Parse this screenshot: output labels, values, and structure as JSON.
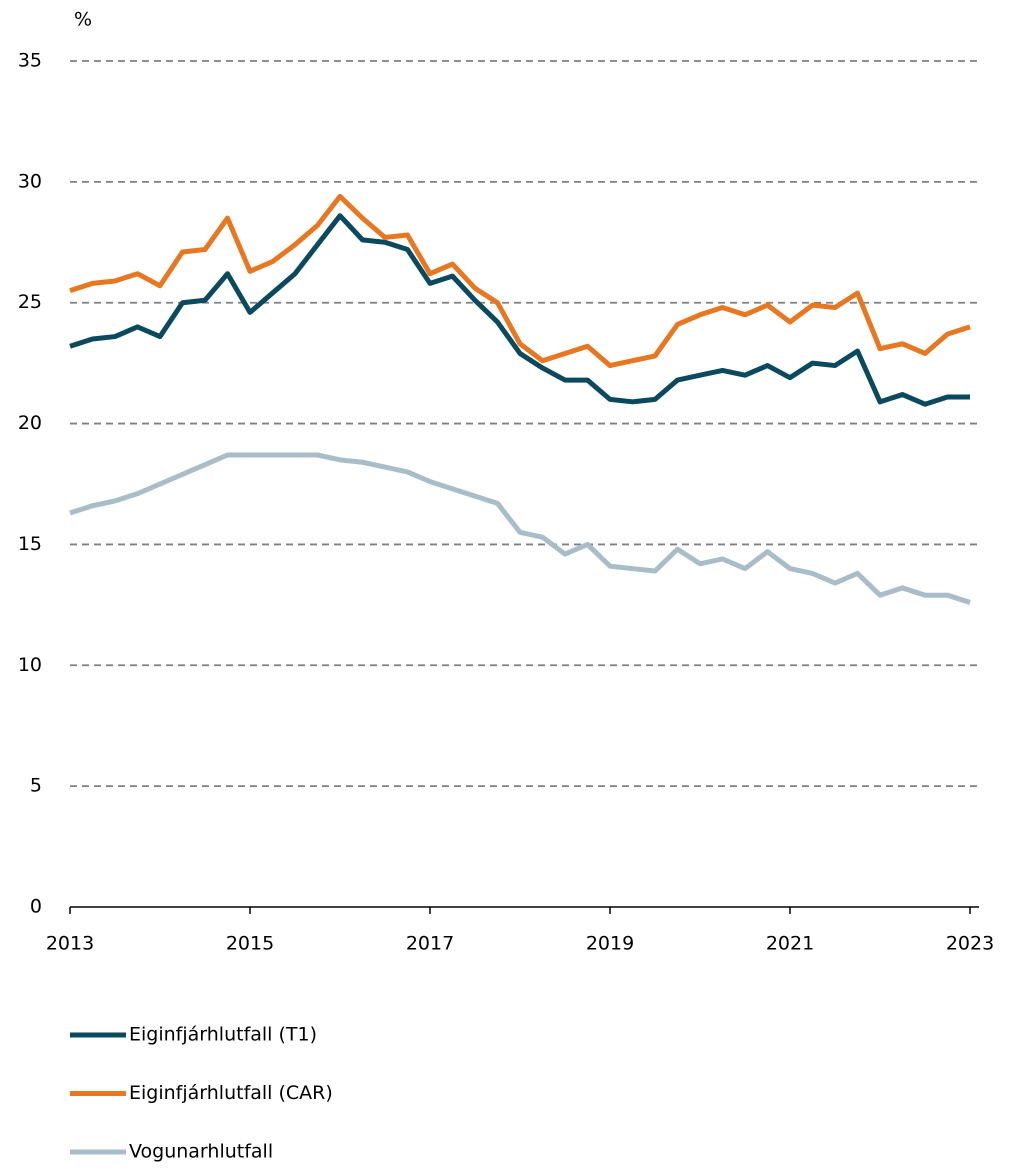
{
  "chart_data": {
    "type": "line",
    "y_label": "%",
    "x": [
      2013,
      2013.25,
      2013.5,
      2013.75,
      2014,
      2014.25,
      2014.5,
      2014.75,
      2015,
      2015.25,
      2015.5,
      2015.75,
      2016,
      2016.25,
      2016.5,
      2016.75,
      2017,
      2017.25,
      2017.5,
      2017.75,
      2018,
      2018.25,
      2018.5,
      2018.75,
      2019,
      2019.25,
      2019.5,
      2019.75,
      2020,
      2020.25,
      2020.5,
      2020.75,
      2021,
      2021.25,
      2021.5,
      2021.75,
      2022,
      2022.25,
      2022.5,
      2022.75,
      2023
    ],
    "series": [
      {
        "name": "Eiginfjárhlutfall (T1)",
        "color": "#0b4a5e",
        "values": [
          23.2,
          23.5,
          23.6,
          24.0,
          23.6,
          25.0,
          25.1,
          26.2,
          24.6,
          25.4,
          26.2,
          27.4,
          28.6,
          27.6,
          27.5,
          27.2,
          25.8,
          26.1,
          25.1,
          24.2,
          22.9,
          22.3,
          21.8,
          21.8,
          21.0,
          20.9,
          21.0,
          21.8,
          22.0,
          22.2,
          22.0,
          22.4,
          21.9,
          22.5,
          22.4,
          23.0,
          20.9,
          21.2,
          20.8,
          21.1,
          21.1
        ]
      },
      {
        "name": "Eiginfjárhlutfall (CAR)",
        "color": "#e87722",
        "values": [
          25.5,
          25.8,
          25.9,
          26.2,
          25.7,
          27.1,
          27.2,
          28.5,
          26.3,
          26.7,
          27.4,
          28.2,
          29.4,
          28.5,
          27.7,
          27.8,
          26.2,
          26.6,
          25.6,
          25.0,
          23.3,
          22.6,
          22.9,
          23.2,
          22.4,
          22.6,
          22.8,
          24.1,
          24.5,
          24.8,
          24.5,
          24.9,
          24.2,
          24.9,
          24.8,
          25.4,
          23.1,
          23.3,
          22.9,
          23.7,
          24.0
        ]
      },
      {
        "name": "Vogunarhlutfall",
        "color": "#a9bdc8",
        "values": [
          16.3,
          16.6,
          16.8,
          17.1,
          17.5,
          17.9,
          18.3,
          18.7,
          18.7,
          18.7,
          18.7,
          18.7,
          18.5,
          18.4,
          18.2,
          18.0,
          17.6,
          17.3,
          17.0,
          16.7,
          15.5,
          15.3,
          14.6,
          15.0,
          14.1,
          14.0,
          13.9,
          14.8,
          14.2,
          14.4,
          14.0,
          14.7,
          14.0,
          13.8,
          13.4,
          13.8,
          12.9,
          13.2,
          12.9,
          12.9,
          12.6
        ]
      }
    ],
    "xlim": [
      2013,
      2023.1
    ],
    "xticks": [
      2013,
      2015,
      2017,
      2019,
      2021,
      2023
    ],
    "ylim": [
      0,
      35
    ],
    "yticks": [
      0,
      5,
      10,
      15,
      20,
      25,
      30,
      35
    ],
    "grid": true,
    "legend": "bottom"
  }
}
